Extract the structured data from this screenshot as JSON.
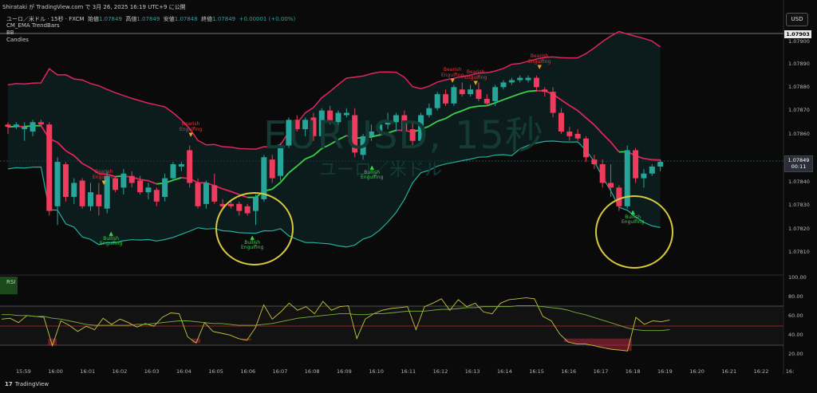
{
  "header": {
    "title": "Shirataki が TradingView.com で 3月 26, 2025 16:19 UTC+9 に公開"
  },
  "symbol_bar": {
    "name": "ユーロ／米ドル · 15秒 · FXCM",
    "open_label": "始値",
    "open": "1.07849",
    "high_label": "高値",
    "high": "1.07849",
    "low_label": "安値",
    "low": "1.07848",
    "close_label": "終値",
    "close": "1.07849",
    "change": "+0.00001 (+0.00%)"
  },
  "indicators": [
    "CM_EMA TrendBars",
    "BB",
    "Candles"
  ],
  "currency_button": "USD",
  "watermark": {
    "main": "EURUSD, 15秒",
    "sub": "ユーロ／米ドル"
  },
  "price_axis": {
    "ticks": [
      "1.07900",
      "1.07890",
      "1.07880",
      "1.07870",
      "1.07860",
      "1.07840",
      "1.07830",
      "1.07820",
      "1.07810"
    ],
    "top_marker": "1.07903",
    "last_price": "1.07849",
    "countdown": "00:11"
  },
  "rsi_panel": {
    "label": "RSI",
    "ticks": [
      "100.00",
      "80.00",
      "60.00",
      "40.00",
      "20.00"
    ]
  },
  "time_axis": [
    "15:59",
    "16:00",
    "16:01",
    "16:02",
    "16:03",
    "16:04",
    "16:05",
    "16:06",
    "16:07",
    "16:08",
    "16:09",
    "16:10",
    "16:11",
    "16:12",
    "16:13",
    "16:14",
    "16:15",
    "16:16",
    "16:17",
    "16:18",
    "16:19",
    "16:20",
    "16:21",
    "16:22",
    "16:"
  ],
  "annotations": [
    {
      "text1": "Bullish",
      "text2": "Engulfing",
      "kind": "bull"
    },
    {
      "text1": "Bullish",
      "text2": "Engulfing",
      "kind": "bull"
    },
    {
      "text1": "Bullish",
      "text2": "Engulfing",
      "kind": "bull"
    },
    {
      "text1": "Bullish",
      "text2": "Engulfing",
      "kind": "bull"
    },
    {
      "text1": "Bearish",
      "text2": "Engulfing",
      "kind": "bear"
    },
    {
      "text1": "Bearish",
      "text2": "Engulfing",
      "kind": "bear"
    },
    {
      "text1": "Bearish",
      "text2": "Engulfing",
      "kind": "bear"
    },
    {
      "text1": "Bearish",
      "text2": "Engulfing",
      "kind": "bear"
    },
    {
      "text1": "Bearish",
      "text2": "Engulfing",
      "kind": "bear"
    }
  ],
  "footer": {
    "logo": "17",
    "brand": "TradingView"
  },
  "colors": {
    "up": "#26a69a",
    "down": "#ef3b5d",
    "ema": "#3bd14a",
    "bb_upper": "#e0245e",
    "bb_lower": "#21b0a0",
    "circle": "#d8c93a"
  },
  "chart_data": {
    "type": "candlestick",
    "candles_ohlc": [
      [
        1.07865,
        1.07866,
        1.07861,
        1.07864
      ],
      [
        1.07864,
        1.07866,
        1.07863,
        1.07865
      ],
      [
        1.07863,
        1.07866,
        1.07858,
        1.07864
      ],
      [
        1.07862,
        1.07867,
        1.0786,
        1.07866
      ],
      [
        1.07866,
        1.07867,
        1.07864,
        1.07865
      ],
      [
        1.07865,
        1.07866,
        1.07826,
        1.07828
      ],
      [
        1.0783,
        1.07851,
        1.07822,
        1.07849
      ],
      [
        1.07848,
        1.07849,
        1.07832,
        1.07834
      ],
      [
        1.07834,
        1.07842,
        1.07831,
        1.0784
      ],
      [
        1.07841,
        1.07842,
        1.07829,
        1.0783
      ],
      [
        1.0783,
        1.0784,
        1.07828,
        1.07836
      ],
      [
        1.07835,
        1.0784,
        1.07826,
        1.0783
      ],
      [
        1.07829,
        1.07845,
        1.07827,
        1.07843
      ],
      [
        1.07842,
        1.07843,
        1.07836,
        1.07837
      ],
      [
        1.07838,
        1.07846,
        1.07835,
        1.07844
      ],
      [
        1.07843,
        1.07845,
        1.07838,
        1.0784
      ],
      [
        1.07841,
        1.07843,
        1.07835,
        1.07836
      ],
      [
        1.07836,
        1.0784,
        1.07833,
        1.07838
      ],
      [
        1.07837,
        1.07838,
        1.0783,
        1.07832
      ],
      [
        1.07834,
        1.07844,
        1.07832,
        1.07842
      ],
      [
        1.07842,
        1.07849,
        1.07841,
        1.07848
      ],
      [
        1.07847,
        1.07849,
        1.07845,
        1.07848
      ],
      [
        1.07854,
        1.07856,
        1.07838,
        1.0784
      ],
      [
        1.0784,
        1.07842,
        1.07829,
        1.0783
      ],
      [
        1.07831,
        1.07841,
        1.07829,
        1.0784
      ],
      [
        1.07839,
        1.07844,
        1.07831,
        1.07832
      ],
      [
        1.07831,
        1.07833,
        1.07829,
        1.0783
      ],
      [
        1.07831,
        1.07833,
        1.07829,
        1.0783
      ],
      [
        1.07831,
        1.07832,
        1.07826,
        1.07828
      ],
      [
        1.0783,
        1.07831,
        1.07826,
        1.07827
      ],
      [
        1.07828,
        1.07835,
        1.07822,
        1.07834
      ],
      [
        1.07833,
        1.07852,
        1.07832,
        1.07851
      ],
      [
        1.0785,
        1.07852,
        1.0784,
        1.07842
      ],
      [
        1.07843,
        1.07857,
        1.07841,
        1.07856
      ],
      [
        1.07856,
        1.07868,
        1.07855,
        1.07867
      ],
      [
        1.07867,
        1.07869,
        1.07862,
        1.07863
      ],
      [
        1.07863,
        1.07868,
        1.0786,
        1.07867
      ],
      [
        1.07868,
        1.0787,
        1.07858,
        1.0786
      ],
      [
        1.0786,
        1.07872,
        1.07858,
        1.07871
      ],
      [
        1.07871,
        1.07873,
        1.07865,
        1.07866
      ],
      [
        1.07866,
        1.07871,
        1.07864,
        1.0787
      ],
      [
        1.07869,
        1.07872,
        1.07868,
        1.0787
      ],
      [
        1.07869,
        1.07872,
        1.07851,
        1.07853
      ],
      [
        1.07852,
        1.07861,
        1.0785,
        1.0786
      ],
      [
        1.0786,
        1.07865,
        1.07858,
        1.07862
      ],
      [
        1.07862,
        1.07866,
        1.0786,
        1.07865
      ],
      [
        1.07865,
        1.0787,
        1.07863,
        1.07866
      ],
      [
        1.07866,
        1.0787,
        1.07862,
        1.07869
      ],
      [
        1.07869,
        1.07871,
        1.0786,
        1.07862
      ],
      [
        1.07863,
        1.07866,
        1.07856,
        1.07858
      ],
      [
        1.07858,
        1.0787,
        1.07857,
        1.07869
      ],
      [
        1.07869,
        1.07874,
        1.07868,
        1.07872
      ],
      [
        1.07872,
        1.07879,
        1.07871,
        1.07878
      ],
      [
        1.07878,
        1.0788,
        1.07873,
        1.07874
      ],
      [
        1.07874,
        1.07882,
        1.07873,
        1.07881
      ],
      [
        1.0788,
        1.07883,
        1.07877,
        1.07878
      ],
      [
        1.07878,
        1.07882,
        1.07877,
        1.0788
      ],
      [
        1.0788,
        1.07883,
        1.07875,
        1.07876
      ],
      [
        1.07876,
        1.07878,
        1.07873,
        1.07874
      ],
      [
        1.07875,
        1.07882,
        1.07873,
        1.07881
      ],
      [
        1.07881,
        1.07884,
        1.0788,
        1.07883
      ],
      [
        1.07883,
        1.07885,
        1.07882,
        1.07884
      ],
      [
        1.07884,
        1.07886,
        1.07883,
        1.07885
      ],
      [
        1.07884,
        1.07886,
        1.07883,
        1.07885
      ],
      [
        1.07885,
        1.07886,
        1.07879,
        1.07881
      ],
      [
        1.0788,
        1.07881,
        1.07877,
        1.07879
      ],
      [
        1.07879,
        1.07881,
        1.07868,
        1.0787
      ],
      [
        1.0787,
        1.07872,
        1.07861,
        1.07862
      ],
      [
        1.07862,
        1.07864,
        1.07858,
        1.0786
      ],
      [
        1.07861,
        1.07863,
        1.07858,
        1.07859
      ],
      [
        1.07859,
        1.0786,
        1.07849,
        1.07851
      ],
      [
        1.0785,
        1.07852,
        1.07846,
        1.07848
      ],
      [
        1.07848,
        1.0785,
        1.07838,
        1.0784
      ],
      [
        1.0784,
        1.07848,
        1.07834,
        1.07838
      ],
      [
        1.07838,
        1.07839,
        1.07828,
        1.0783
      ],
      [
        1.0783,
        1.07856,
        1.07829,
        1.07854
      ],
      [
        1.07854,
        1.07855,
        1.0784,
        1.07842
      ],
      [
        1.07842,
        1.07846,
        1.07838,
        1.07844
      ],
      [
        1.07844,
        1.07848,
        1.07843,
        1.07847
      ],
      [
        1.07847,
        1.0785,
        1.07845,
        1.07849
      ]
    ],
    "rsi": [
      52,
      53,
      48,
      56,
      55,
      54,
      22,
      50,
      45,
      38,
      44,
      40,
      53,
      46,
      52,
      48,
      43,
      47,
      44,
      54,
      59,
      58,
      32,
      25,
      48,
      38,
      36,
      34,
      30,
      28,
      42,
      68,
      52,
      60,
      70,
      62,
      66,
      58,
      72,
      62,
      66,
      67,
      30,
      52,
      58,
      62,
      64,
      65,
      66,
      40,
      66,
      70,
      75,
      62,
      74,
      66,
      70,
      60,
      58,
      70,
      74,
      75,
      76,
      75,
      55,
      50,
      35,
      26,
      24,
      24,
      22,
      20,
      18,
      17,
      16,
      54,
      46,
      50,
      49,
      51
    ],
    "rsi_ma": [
      57,
      57,
      56,
      56,
      55,
      55,
      53,
      52,
      50,
      48,
      46,
      45,
      45,
      45,
      45,
      45,
      46,
      46,
      47,
      48,
      49,
      50,
      50,
      49,
      48,
      47,
      47,
      46,
      45,
      45,
      45,
      46,
      47,
      49,
      51,
      53,
      54,
      55,
      56,
      57,
      58,
      58,
      57,
      57,
      58,
      58,
      59,
      60,
      61,
      61,
      61,
      62,
      63,
      63,
      64,
      65,
      65,
      66,
      66,
      66,
      66,
      67,
      67,
      67,
      66,
      65,
      64,
      62,
      59,
      57,
      54,
      51,
      48,
      45,
      42,
      40,
      39,
      39,
      39,
      40
    ],
    "ylim": [
      1.07805,
      1.07905
    ],
    "rsi_ylim": [
      0,
      100
    ]
  }
}
